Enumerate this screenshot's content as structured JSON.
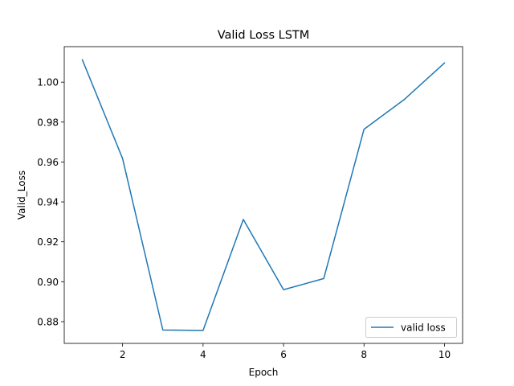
{
  "chart_data": {
    "type": "line",
    "title": "Valid Loss LSTM",
    "xlabel": "Epoch",
    "ylabel": "Valid_Loss",
    "xlim": [
      0.55,
      10.45
    ],
    "ylim": [
      0.8691,
      1.0178
    ],
    "xticks": [
      2,
      4,
      6,
      8,
      10
    ],
    "yticks": [
      0.88,
      0.9,
      0.92,
      0.94,
      0.96,
      0.98,
      1.0
    ],
    "ytick_labels": [
      "0.88",
      "0.90",
      "0.92",
      "0.94",
      "0.96",
      "0.98",
      "1.00"
    ],
    "grid": false,
    "legend_position": "lower-right",
    "series": [
      {
        "name": "valid loss",
        "color": "#1f77b4",
        "x": [
          1,
          2,
          3,
          4,
          5,
          6,
          7,
          8,
          9,
          10
        ],
        "y": [
          1.0112,
          0.9617,
          0.8758,
          0.8756,
          0.9312,
          0.896,
          0.9016,
          0.9764,
          0.9913,
          1.0096
        ]
      }
    ]
  }
}
